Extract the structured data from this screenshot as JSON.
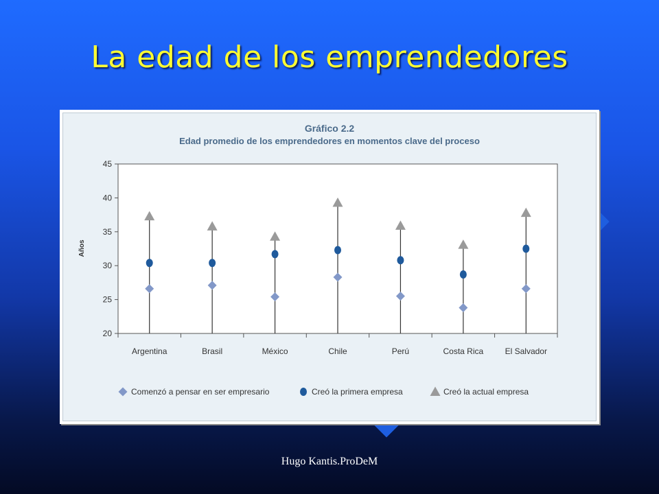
{
  "slide": {
    "title": "La edad de los emprendedores",
    "footer": "Hugo Kantis.ProDeM"
  },
  "colors": {
    "title": "#ffff33",
    "chart_title": "#4a6a8a",
    "series_pensar": "#8298c8",
    "series_primera": "#1f5a9c",
    "series_actual": "#9a9a9a"
  },
  "chart_data": {
    "type": "scatter",
    "title": "Gráfico 2.2",
    "subtitle": "Edad promedio de los emprendedores en momentos clave del proceso",
    "xlabel": "",
    "ylabel": "Años",
    "ylim": [
      20,
      45
    ],
    "yticks": [
      20,
      25,
      30,
      35,
      40,
      45
    ],
    "grid": false,
    "legend_position": "bottom",
    "categories": [
      "Argentina",
      "Brasil",
      "México",
      "Chile",
      "Perú",
      "Costa Rica",
      "El Salvador"
    ],
    "series": [
      {
        "name": "Comenzó a pensar en ser empresario",
        "marker": "diamond",
        "values": [
          26.6,
          27.1,
          25.4,
          28.3,
          25.5,
          23.8,
          26.6
        ]
      },
      {
        "name": "Creó la primera empresa",
        "marker": "circle",
        "values": [
          30.4,
          30.4,
          31.7,
          32.3,
          30.8,
          28.7,
          32.5
        ]
      },
      {
        "name": "Creó la actual empresa",
        "marker": "triangle",
        "values": [
          37.3,
          35.8,
          34.3,
          39.3,
          35.9,
          33.1,
          37.8
        ]
      }
    ]
  }
}
